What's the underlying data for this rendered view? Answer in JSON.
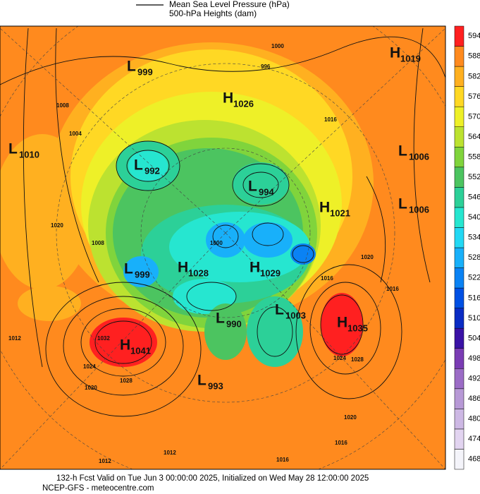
{
  "legend": {
    "items": [
      "Mean Sea Level Pressure (hPa)",
      "500-hPa Heights (dam)"
    ]
  },
  "colorbar": {
    "ticks": [
      468,
      474,
      480,
      486,
      492,
      498,
      504,
      510,
      516,
      522,
      528,
      534,
      540,
      546,
      552,
      558,
      564,
      570,
      576,
      582,
      588,
      594
    ],
    "colors": [
      "#f4f4fa",
      "#e2d4f0",
      "#cdb8e4",
      "#b799d6",
      "#9b6cc6",
      "#7a3cb4",
      "#3a12a6",
      "#0a2cc4",
      "#0050e4",
      "#0a82f4",
      "#18b0fa",
      "#22d8f4",
      "#26e6d0",
      "#2cd098",
      "#4cc460",
      "#80d43c",
      "#bce230",
      "#eef028",
      "#ffd824",
      "#ffb020",
      "#ff8a1e",
      "#ff2020"
    ]
  },
  "centers": [
    {
      "letter": "L",
      "value": "999"
    },
    {
      "letter": "H",
      "value": "1026"
    },
    {
      "letter": "H",
      "value": "1019"
    },
    {
      "letter": "L",
      "value": "1010"
    },
    {
      "letter": "L",
      "value": "992"
    },
    {
      "letter": "L",
      "value": "994"
    },
    {
      "letter": "L",
      "value": "1006"
    },
    {
      "letter": "H",
      "value": "1021"
    },
    {
      "letter": "L",
      "value": "1006"
    },
    {
      "letter": "L",
      "value": "999"
    },
    {
      "letter": "H",
      "value": "1028"
    },
    {
      "letter": "H",
      "value": "1029"
    },
    {
      "letter": "L",
      "value": "990"
    },
    {
      "letter": "L",
      "value": "1003"
    },
    {
      "letter": "H",
      "value": "1035"
    },
    {
      "letter": "H",
      "value": "1041"
    },
    {
      "letter": "L",
      "value": "993"
    }
  ],
  "contour_labels": [
    "1000",
    "996",
    "1008",
    "1004",
    "1016",
    "1020",
    "1008",
    "1000",
    "1016",
    "1020",
    "1032",
    "1024",
    "1020",
    "1028",
    "1012",
    "1016",
    "1024",
    "1028",
    "1020",
    "1016",
    "1012",
    "1012",
    "1016"
  ],
  "footer": {
    "line1": "132-h Fcst Valid on Tue Jun  3 00:00:00 2025, Initialized on Wed May 28 12:00:00 2025",
    "line2": "NCEP-GFS  - meteocentre.com"
  }
}
